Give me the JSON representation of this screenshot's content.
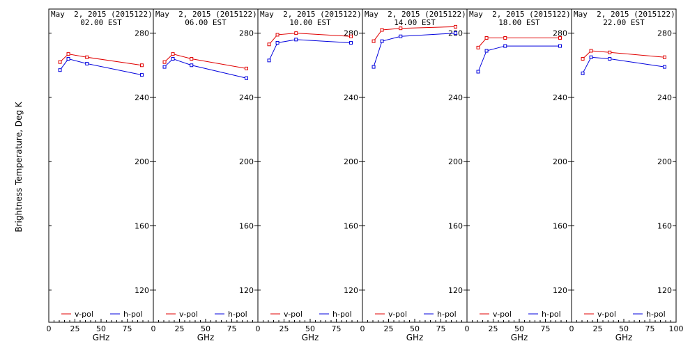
{
  "figure": {
    "ylabel": "Brightness Temperature, Deg K",
    "xlabel": "GHz"
  },
  "chart_data": [
    {
      "type": "line",
      "title_line1": "May  2, 2015 (2015122)",
      "title_line2": "02.00 EST",
      "xlabel": "GHz",
      "ylabel": "Brightness Temperature, Deg K",
      "xlim": [
        0,
        100
      ],
      "ylim": [
        100,
        295
      ],
      "xticks": [
        "0",
        "25",
        "50",
        "75",
        "100"
      ],
      "yticks": [
        120,
        160,
        200,
        240,
        280
      ],
      "ytick_labels": [
        "120",
        "160",
        "200",
        "240",
        "280"
      ],
      "legend": "bottom",
      "series": [
        {
          "name": "v-pol",
          "color": "#e00000",
          "x": [
            10.7,
            18.7,
            36.5,
            89.0
          ],
          "y": [
            262,
            267,
            265,
            260
          ]
        },
        {
          "name": "h-pol",
          "color": "#0000dd",
          "x": [
            10.7,
            18.7,
            36.5,
            89.0
          ],
          "y": [
            257,
            264,
            261,
            254
          ]
        }
      ]
    },
    {
      "type": "line",
      "title_line1": "May  2, 2015 (2015122)",
      "title_line2": "06.00 EST",
      "xlabel": "GHz",
      "xlim": [
        0,
        100
      ],
      "ylim": [
        100,
        295
      ],
      "xticks": [
        "0",
        "25",
        "50",
        "75",
        "100"
      ],
      "yticks": [
        120,
        160,
        200,
        240,
        280
      ],
      "ytick_labels": [
        "120",
        "160",
        "200",
        "240",
        "280"
      ],
      "legend": "bottom",
      "series": [
        {
          "name": "v-pol",
          "color": "#e00000",
          "x": [
            10.7,
            18.7,
            36.5,
            89.0
          ],
          "y": [
            262,
            267,
            264,
            258
          ]
        },
        {
          "name": "h-pol",
          "color": "#0000dd",
          "x": [
            10.7,
            18.7,
            36.5,
            89.0
          ],
          "y": [
            259,
            264,
            260,
            252
          ]
        }
      ]
    },
    {
      "type": "line",
      "title_line1": "May  2, 2015 (2015122)",
      "title_line2": "10.00 EST",
      "xlabel": "GHz",
      "xlim": [
        0,
        100
      ],
      "ylim": [
        100,
        295
      ],
      "xticks": [
        "0",
        "25",
        "50",
        "75",
        "100"
      ],
      "yticks": [
        120,
        160,
        200,
        240,
        280
      ],
      "ytick_labels": [
        "120",
        "160",
        "200",
        "240",
        "280"
      ],
      "legend": "bottom",
      "series": [
        {
          "name": "v-pol",
          "color": "#e00000",
          "x": [
            10.7,
            18.7,
            36.5,
            89.0
          ],
          "y": [
            273,
            279,
            280,
            278
          ]
        },
        {
          "name": "h-pol",
          "color": "#0000dd",
          "x": [
            10.7,
            18.7,
            36.5,
            89.0
          ],
          "y": [
            263,
            274,
            276,
            274
          ]
        }
      ]
    },
    {
      "type": "line",
      "title_line1": "May  2, 2015 (2015122)",
      "title_line2": "14.00 EST",
      "xlabel": "GHz",
      "xlim": [
        0,
        100
      ],
      "ylim": [
        100,
        295
      ],
      "xticks": [
        "0",
        "25",
        "50",
        "75",
        "100"
      ],
      "yticks": [
        120,
        160,
        200,
        240,
        280
      ],
      "ytick_labels": [
        "120",
        "160",
        "200",
        "240",
        "280"
      ],
      "legend": "bottom",
      "series": [
        {
          "name": "v-pol",
          "color": "#e00000",
          "x": [
            10.7,
            18.7,
            36.5,
            89.0
          ],
          "y": [
            275,
            282,
            283,
            284
          ]
        },
        {
          "name": "h-pol",
          "color": "#0000dd",
          "x": [
            10.7,
            18.7,
            36.5,
            89.0
          ],
          "y": [
            259,
            275,
            278,
            280
          ]
        }
      ]
    },
    {
      "type": "line",
      "title_line1": "May  2, 2015 (2015122)",
      "title_line2": "18.00 EST",
      "xlabel": "GHz",
      "xlim": [
        0,
        100
      ],
      "ylim": [
        100,
        295
      ],
      "xticks": [
        "0",
        "25",
        "50",
        "75",
        "100"
      ],
      "yticks": [
        120,
        160,
        200,
        240,
        280
      ],
      "ytick_labels": [
        "120",
        "160",
        "200",
        "240",
        "280"
      ],
      "legend": "bottom",
      "series": [
        {
          "name": "v-pol",
          "color": "#e00000",
          "x": [
            10.7,
            18.7,
            36.5,
            89.0
          ],
          "y": [
            271,
            277,
            277,
            277
          ]
        },
        {
          "name": "h-pol",
          "color": "#0000dd",
          "x": [
            10.7,
            18.7,
            36.5,
            89.0
          ],
          "y": [
            256,
            269,
            272,
            272
          ]
        }
      ]
    },
    {
      "type": "line",
      "title_line1": "May  2, 2015 (2015122)",
      "title_line2": "22.00 EST",
      "xlabel": "GHz",
      "xlim": [
        0,
        100
      ],
      "ylim": [
        100,
        295
      ],
      "xticks": [
        "0",
        "25",
        "50",
        "75",
        "100"
      ],
      "yticks": [
        120,
        160,
        200,
        240,
        280
      ],
      "ytick_labels": [
        "120",
        "160",
        "200",
        "240",
        "280"
      ],
      "legend": "bottom",
      "series": [
        {
          "name": "v-pol",
          "color": "#e00000",
          "x": [
            10.7,
            18.7,
            36.5,
            89.0
          ],
          "y": [
            264,
            269,
            268,
            265
          ]
        },
        {
          "name": "h-pol",
          "color": "#0000dd",
          "x": [
            10.7,
            18.7,
            36.5,
            89.0
          ],
          "y": [
            255,
            265,
            264,
            259
          ]
        }
      ]
    }
  ]
}
